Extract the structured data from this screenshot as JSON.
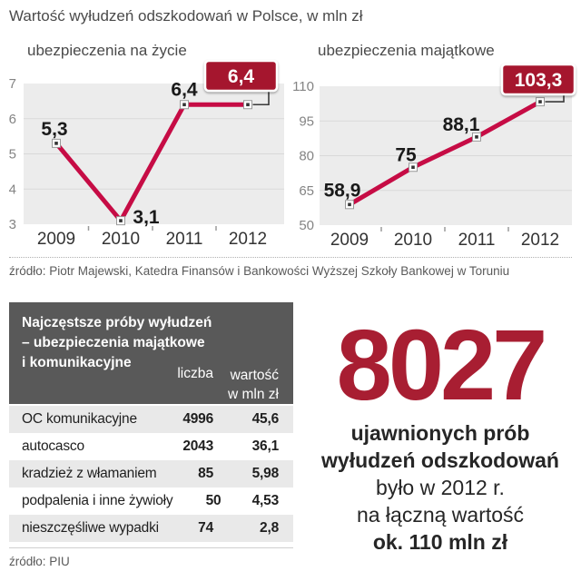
{
  "page": {
    "title": "Wartość wyłudzeń odszkodowań w Polsce, w mln zł",
    "source_charts": "źródło: Piotr Majewski, Katedra Finansów i Bankowości Wyższej Szkoły Bankowej w Toruniu",
    "source_table": "źródło: PIU"
  },
  "colors": {
    "line": "#c60c45",
    "badge": "#a5192d",
    "accent_dark_red": "#a81e32",
    "plot_bg": "#ececec",
    "grid": "#d9d9d9",
    "table_header_bg": "#595959",
    "row_alt_bg": "#e9e9e9",
    "marker_inner": "#333333",
    "text_dark": "#1a1a1a"
  },
  "chart_data": [
    {
      "type": "line",
      "title": "ubezpieczenia na życie",
      "x": [
        "2009",
        "2010",
        "2011",
        "2012"
      ],
      "values": [
        5.3,
        3.1,
        6.4,
        6.4
      ],
      "point_labels": [
        "5,3",
        "3,1",
        "6,4"
      ],
      "badge_label": "6,4",
      "ylim": [
        3,
        7
      ],
      "yticks": [
        3,
        4,
        5,
        6,
        7
      ],
      "grid": true,
      "legend": "none"
    },
    {
      "type": "line",
      "title": "ubezpieczenia majątkowe",
      "x": [
        "2009",
        "2010",
        "2011",
        "2012"
      ],
      "values": [
        58.9,
        75,
        88.1,
        103.3
      ],
      "point_labels": [
        "58,9",
        "75",
        "88,1"
      ],
      "badge_label": "103,3",
      "ylim": [
        50,
        110
      ],
      "yticks": [
        50,
        65,
        80,
        95,
        110
      ],
      "grid": true,
      "legend": "none"
    }
  ],
  "table": {
    "title_lines": [
      "Najczęstsze próby wyłudzeń",
      "– ubezpieczenia majątkowe",
      "i komunikacyjne"
    ],
    "col_liczba": "liczba",
    "col_wartosc_line1": "wartość",
    "col_wartosc_line2": "w mln zł",
    "rows": [
      {
        "label": "OC komunikacyjne",
        "liczba": "4996",
        "wartosc": "45,6"
      },
      {
        "label": "autocasco",
        "liczba": "2043",
        "wartosc": "36,1"
      },
      {
        "label": "kradzież z włamaniem",
        "liczba": "85",
        "wartosc": "5,98"
      },
      {
        "label": "podpalenia i inne żywioły",
        "liczba": "50",
        "wartosc": "4,53"
      },
      {
        "label": "nieszczęśliwe wypadki",
        "liczba": "74",
        "wartosc": "2,8"
      }
    ]
  },
  "stat": {
    "number": "8027",
    "lines": [
      {
        "text": "ujawnionych prób",
        "bold": true
      },
      {
        "text": "wyłudzeń odszkodowań",
        "bold": true
      },
      {
        "text": "było w 2012 r.",
        "bold": false
      },
      {
        "text": "na łączną wartość",
        "bold": false
      },
      {
        "text": "ok. 110 mln zł",
        "bold": true
      }
    ]
  }
}
